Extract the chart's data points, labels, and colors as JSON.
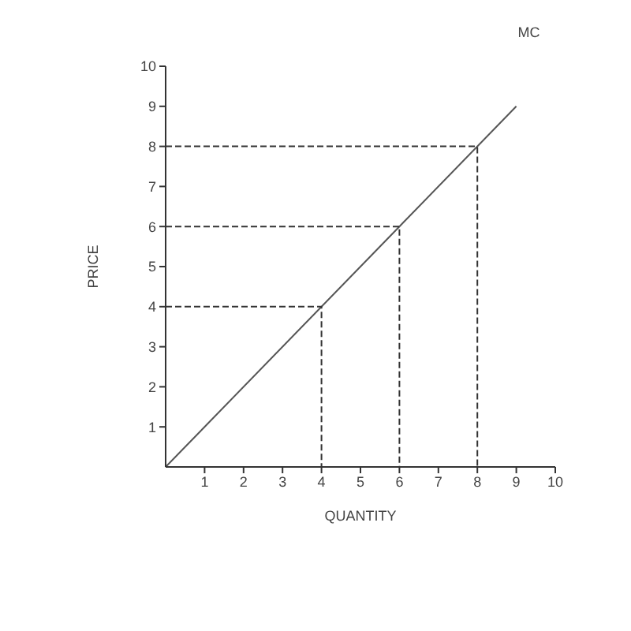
{
  "chart_data": {
    "type": "line",
    "xlabel": "QUANTITY",
    "ylabel": "PRICE",
    "xlim": [
      0,
      10
    ],
    "ylim": [
      0,
      10
    ],
    "xticks": [
      1,
      2,
      3,
      4,
      5,
      6,
      7,
      8,
      9,
      10
    ],
    "yticks": [
      1,
      2,
      3,
      4,
      5,
      6,
      7,
      8,
      9,
      10
    ],
    "marker": "none",
    "series": [
      {
        "name": "MC",
        "color": "#555555",
        "x": [
          0,
          9
        ],
        "values": [
          0,
          9
        ],
        "line_style": "solid"
      },
      {
        "color": "#333333",
        "x": [
          0,
          4,
          4
        ],
        "values": [
          4,
          4,
          0
        ],
        "line_style": "dashed"
      },
      {
        "color": "#333333",
        "x": [
          0,
          6,
          6
        ],
        "values": [
          6,
          6,
          0
        ],
        "line_style": "dashed"
      },
      {
        "color": "#333333",
        "x": [
          0,
          8,
          8
        ],
        "values": [
          8,
          8,
          0
        ],
        "line_style": "dashed"
      }
    ]
  }
}
